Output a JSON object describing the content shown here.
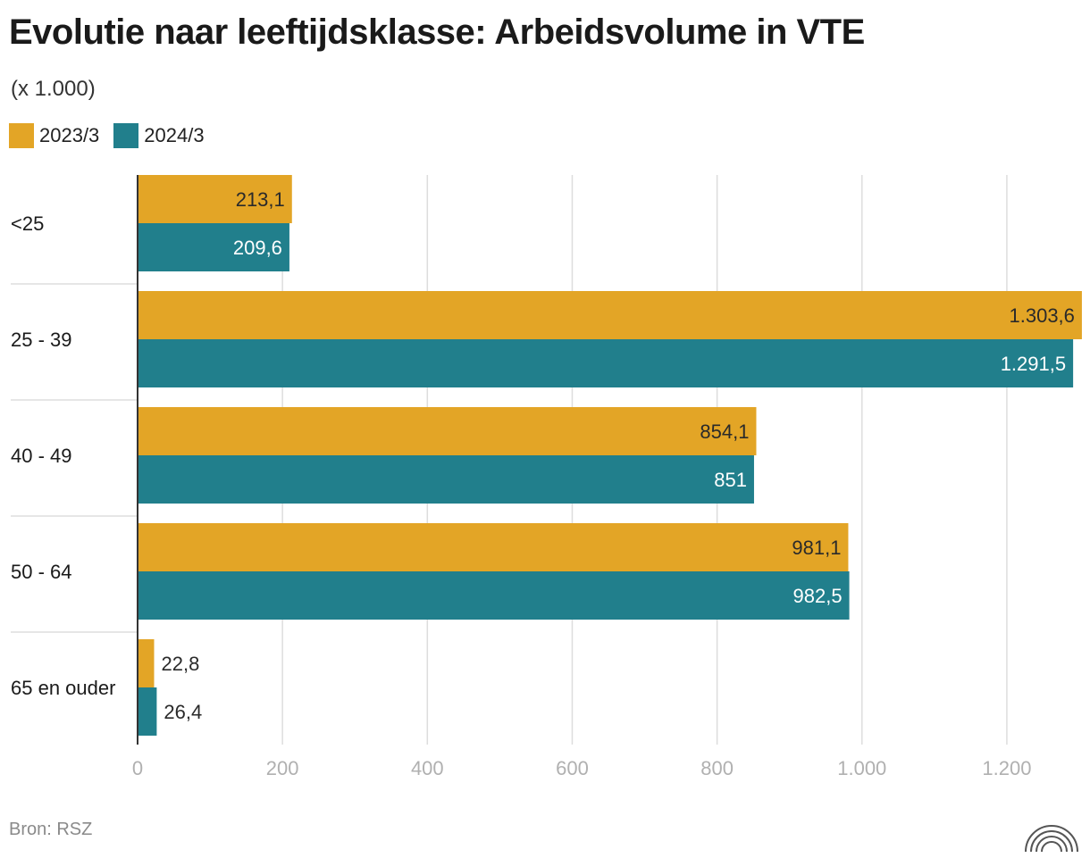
{
  "title": "Evolutie naar leeftijdsklasse: Arbeidsvolume in VTE",
  "subtitle": "(x 1.000)",
  "source": "Bron: RSZ",
  "colors": {
    "series1": "#E3A526",
    "series2": "#217F8C",
    "grid": "#dddddd",
    "axis": "#333333"
  },
  "chart_data": {
    "type": "bar",
    "orientation": "horizontal",
    "title": "Evolutie naar leeftijdsklasse: Arbeidsvolume in VTE",
    "subtitle": "(x 1.000)",
    "categories": [
      "<25",
      "25 - 39",
      "40 - 49",
      "50 - 64",
      "65 en ouder"
    ],
    "series": [
      {
        "name": "2023/3",
        "values": [
          213.1,
          1303.6,
          854.1,
          981.1,
          22.8
        ],
        "labels": [
          "213,1",
          "1.303,6",
          "854,1",
          "981,1",
          "22,8"
        ]
      },
      {
        "name": "2024/3",
        "values": [
          209.6,
          1291.5,
          851,
          982.5,
          26.4
        ],
        "labels": [
          "209,6",
          "1.291,5",
          "851",
          "982,5",
          "26,4"
        ]
      }
    ],
    "xlim": [
      0,
      1300
    ],
    "xticks": [
      0,
      200,
      400,
      600,
      800,
      1000,
      1200
    ],
    "xtick_labels": [
      "0",
      "200",
      "400",
      "600",
      "800",
      "1.000",
      "1.200"
    ],
    "grid": true,
    "legend": "top-left"
  }
}
